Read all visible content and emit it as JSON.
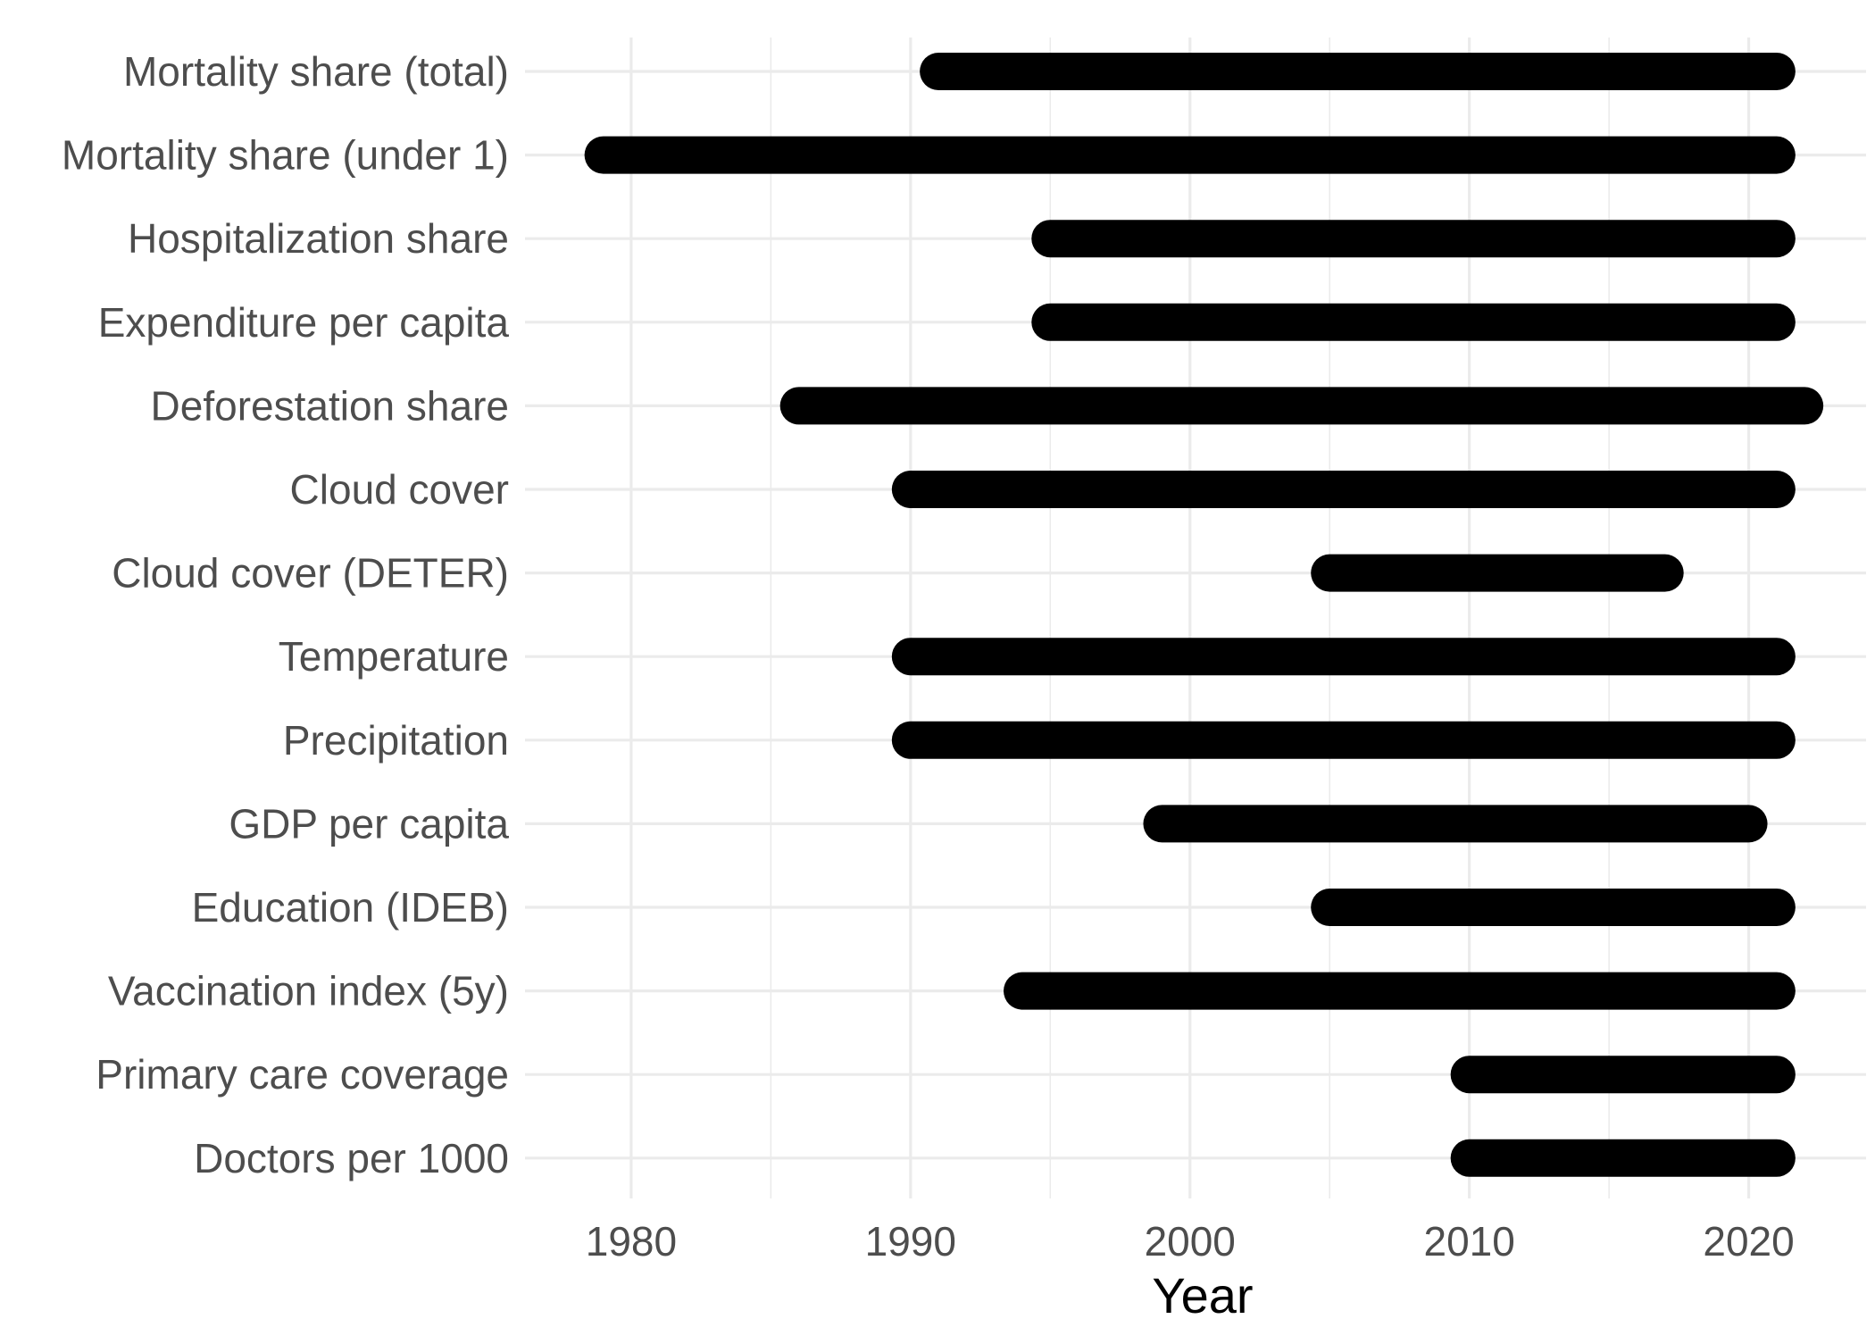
{
  "chart_data": {
    "type": "bar",
    "orientation": "horizontal-range",
    "title": "",
    "xlabel": "Year",
    "ylabel": "",
    "xlim": [
      1976.2,
      2024.2
    ],
    "x_ticks": [
      1980,
      1990,
      2000,
      2010,
      2020
    ],
    "grid": true,
    "legend": "none",
    "bar_color": "#000000",
    "grid_color": "#ebebeb",
    "rows": [
      {
        "label": "Mortality share (total)",
        "start": 1991,
        "end": 2021
      },
      {
        "label": "Mortality share (under 1)",
        "start": 1979,
        "end": 2021
      },
      {
        "label": "Hospitalization share",
        "start": 1995,
        "end": 2021
      },
      {
        "label": "Expenditure per capita",
        "start": 1995,
        "end": 2021
      },
      {
        "label": "Deforestation share",
        "start": 1986,
        "end": 2022
      },
      {
        "label": "Cloud cover",
        "start": 1990,
        "end": 2021
      },
      {
        "label": "Cloud cover (DETER)",
        "start": 2005,
        "end": 2017
      },
      {
        "label": "Temperature",
        "start": 1990,
        "end": 2021
      },
      {
        "label": "Precipitation",
        "start": 1990,
        "end": 2021
      },
      {
        "label": "GDP per capita",
        "start": 1999,
        "end": 2020
      },
      {
        "label": "Education (IDEB)",
        "start": 2005,
        "end": 2021
      },
      {
        "label": "Vaccination index (5y)",
        "start": 1994,
        "end": 2021
      },
      {
        "label": "Primary care coverage",
        "start": 2010,
        "end": 2021
      },
      {
        "label": "Doctors per 1000",
        "start": 2010,
        "end": 2021
      }
    ]
  }
}
